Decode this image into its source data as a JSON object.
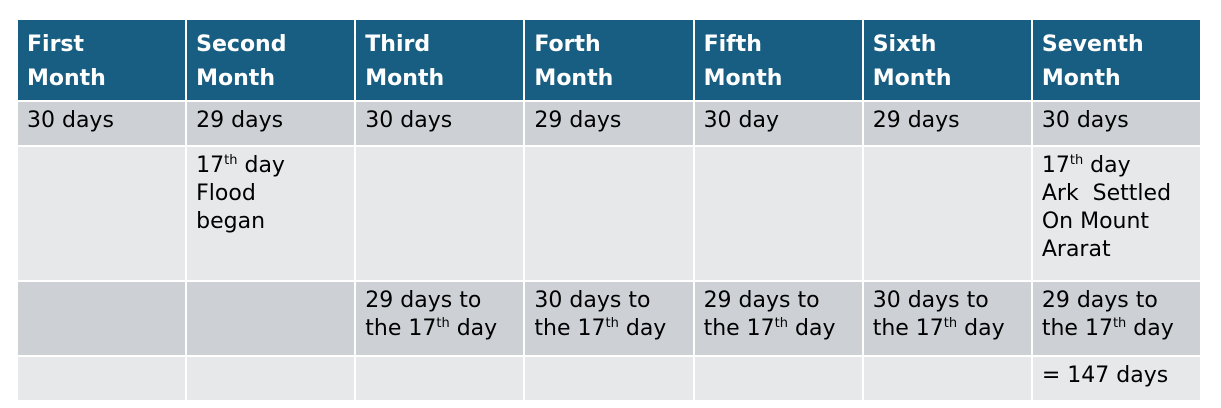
{
  "colors": {
    "header": "#175e82",
    "row_dark": "#cdd1d6",
    "row_light": "#e6e8ea"
  },
  "table": {
    "headers": [
      [
        "First",
        "Month"
      ],
      [
        "Second",
        "Month"
      ],
      [
        "Third",
        "Month"
      ],
      [
        "Forth",
        "Month"
      ],
      [
        "Fifth",
        "Month"
      ],
      [
        "Sixth",
        "Month"
      ],
      [
        "Seventh",
        "Month"
      ]
    ],
    "rows": [
      [
        [
          [
            {
              "t": "30 days"
            }
          ]
        ],
        [
          [
            {
              "t": "29 days"
            }
          ]
        ],
        [
          [
            {
              "t": "30 days"
            }
          ]
        ],
        [
          [
            {
              "t": "29 days"
            }
          ]
        ],
        [
          [
            {
              "t": "30 day"
            }
          ]
        ],
        [
          [
            {
              "t": "29 days"
            }
          ]
        ],
        [
          [
            {
              "t": "30 days"
            }
          ]
        ]
      ],
      [
        [],
        [
          [
            {
              "t": "17"
            },
            {
              "t": "th",
              "sup": true
            },
            {
              "t": " day"
            }
          ],
          [
            {
              "t": "Flood"
            }
          ],
          [
            {
              "t": "began"
            }
          ]
        ],
        [],
        [],
        [],
        [],
        [
          [
            {
              "t": "17"
            },
            {
              "t": "th",
              "sup": true
            },
            {
              "t": " day"
            }
          ],
          [
            {
              "t": "Ark  Settled"
            }
          ],
          [
            {
              "t": "On Mount"
            }
          ],
          [
            {
              "t": "Ararat"
            }
          ]
        ]
      ],
      [
        [],
        [],
        [
          [
            {
              "t": "29 days to"
            }
          ],
          [
            {
              "t": "the 17"
            },
            {
              "t": "th",
              "sup": true
            },
            {
              "t": " day"
            }
          ]
        ],
        [
          [
            {
              "t": "30 days to"
            }
          ],
          [
            {
              "t": "the 17"
            },
            {
              "t": "th",
              "sup": true
            },
            {
              "t": " day"
            }
          ]
        ],
        [
          [
            {
              "t": "29 days to"
            }
          ],
          [
            {
              "t": "the 17"
            },
            {
              "t": "th",
              "sup": true
            },
            {
              "t": " day"
            }
          ]
        ],
        [
          [
            {
              "t": "30 days to"
            }
          ],
          [
            {
              "t": "the 17"
            },
            {
              "t": "th",
              "sup": true
            },
            {
              "t": " day"
            }
          ]
        ],
        [
          [
            {
              "t": "29 days to"
            }
          ],
          [
            {
              "t": "the 17"
            },
            {
              "t": "th",
              "sup": true
            },
            {
              "t": " day"
            }
          ]
        ]
      ],
      [
        [],
        [],
        [],
        [],
        [],
        [],
        [
          [
            {
              "t": "= 147 days"
            }
          ]
        ]
      ]
    ]
  }
}
